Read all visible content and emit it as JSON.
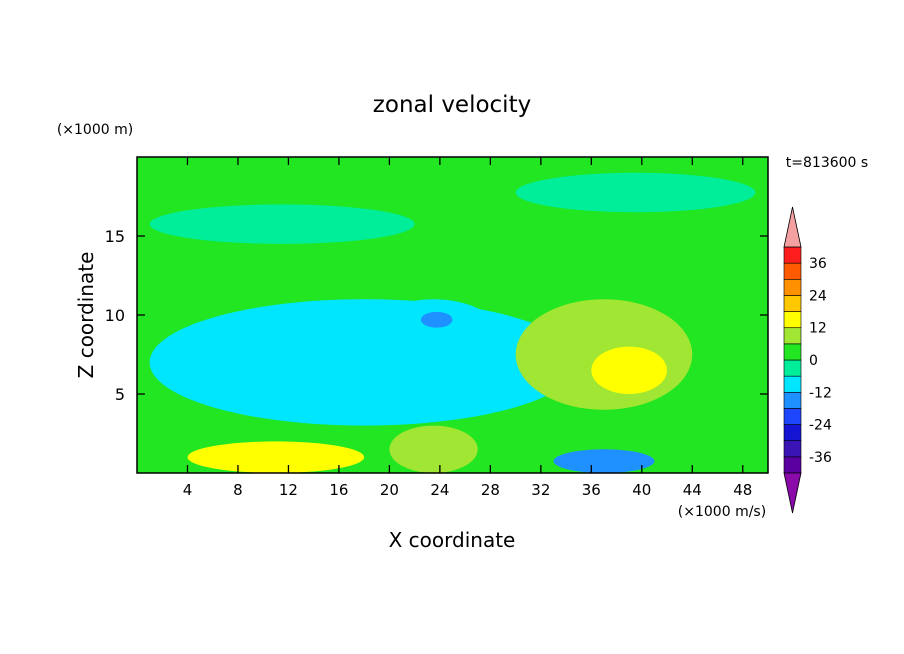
{
  "chart_data": {
    "type": "heatmap",
    "title": "zonal velocity",
    "xlabel": "X coordinate",
    "ylabel": "Z coordinate",
    "x_unit": "(×1000 m/s)",
    "y_unit": "(×1000 m)",
    "time_label": "t=813600 s",
    "xlim": [
      0,
      50
    ],
    "ylim": [
      0,
      20
    ],
    "x_ticks": [
      4,
      8,
      12,
      16,
      20,
      24,
      28,
      32,
      36,
      40,
      44,
      48
    ],
    "y_ticks": [
      5,
      10,
      15
    ],
    "colorbar": {
      "ticks": [
        36,
        24,
        12,
        0,
        -12,
        -24,
        -36
      ],
      "levels": [
        -42,
        -36,
        -30,
        -24,
        -18,
        -12,
        -6,
        0,
        6,
        12,
        18,
        24,
        30,
        36,
        42
      ],
      "colors": [
        "#5a00a0",
        "#3a14b4",
        "#1414d2",
        "#1e46ff",
        "#1e90ff",
        "#00e6ff",
        "#00ee9a",
        "#22e622",
        "#a0e632",
        "#ffff00",
        "#ffc800",
        "#ff9000",
        "#ff5a00",
        "#ff1e1e"
      ],
      "under_color": "#8a0aaa",
      "over_color": "#f5a0a0"
    },
    "field_features": [
      {
        "label": "background",
        "x": [
          0,
          50
        ],
        "z": [
          0,
          20
        ],
        "value": 1
      },
      {
        "label": "upper-left cyan layer",
        "x": [
          1,
          22
        ],
        "z": [
          14.5,
          17
        ],
        "value": -6
      },
      {
        "label": "upper-right cyan layer",
        "x": [
          30,
          49
        ],
        "z": [
          16.5,
          19
        ],
        "value": -6
      },
      {
        "label": "central cyan zone",
        "x": [
          1,
          35
        ],
        "z": [
          3,
          11
        ],
        "value": -7
      },
      {
        "label": "central low",
        "x": [
          18,
          29
        ],
        "z": [
          6,
          11
        ],
        "value": -12
      },
      {
        "label": "core minimum",
        "x": [
          22.5,
          25
        ],
        "z": [
          9.2,
          10.2
        ],
        "value": -18
      },
      {
        "label": "left low",
        "x": [
          7,
          16
        ],
        "z": [
          6,
          9
        ],
        "value": -10
      },
      {
        "label": "right positive patch",
        "x": [
          30,
          44
        ],
        "z": [
          4,
          11
        ],
        "value": 7
      },
      {
        "label": "right core",
        "x": [
          36,
          42
        ],
        "z": [
          5,
          8
        ],
        "value": 13
      },
      {
        "label": "bottom left maximum",
        "x": [
          4,
          18
        ],
        "z": [
          0,
          2
        ],
        "value": 13
      },
      {
        "label": "bottom middle positive",
        "x": [
          20,
          27
        ],
        "z": [
          0,
          3
        ],
        "value": 9
      },
      {
        "label": "bottom right low",
        "x": [
          33,
          41
        ],
        "z": [
          0,
          1.5
        ],
        "value": -16
      }
    ]
  }
}
